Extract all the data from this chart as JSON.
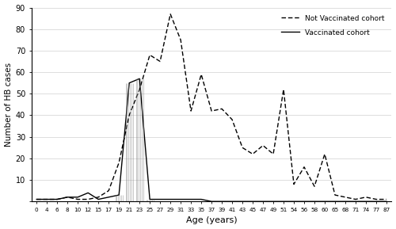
{
  "x_labels": [
    "0",
    "4",
    "6",
    "8",
    "10",
    "12",
    "15",
    "17",
    "19",
    "21",
    "23",
    "25",
    "27",
    "29",
    "31",
    "33",
    "35",
    "37",
    "39",
    "41",
    "43",
    "45",
    "47",
    "49",
    "51",
    "54",
    "56",
    "58",
    "60",
    "65",
    "68",
    "71",
    "74",
    "77",
    "87"
  ],
  "not_vaccinated": [
    1,
    1,
    1,
    2,
    1,
    1,
    2,
    5,
    18,
    40,
    52,
    68,
    65,
    87,
    75,
    42,
    59,
    42,
    43,
    38,
    25,
    22,
    26,
    22,
    52,
    8,
    16,
    7,
    22,
    3,
    2,
    1,
    2,
    1,
    1
  ],
  "vaccinated": [
    1,
    1,
    1,
    2,
    2,
    4,
    1,
    2,
    3,
    55,
    57,
    1,
    1,
    1,
    1,
    1,
    1,
    0,
    0,
    0,
    0,
    0,
    0,
    0,
    0,
    0,
    0,
    0,
    0,
    0,
    0,
    0,
    0,
    0,
    0
  ],
  "vline_x_indices": [
    8,
    9,
    10,
    11
  ],
  "ylim": [
    0,
    90
  ],
  "yticks": [
    0,
    10,
    20,
    30,
    40,
    50,
    60,
    70,
    80,
    90
  ],
  "ylabel": "Number of HB cases",
  "xlabel": "Age (years)",
  "legend_not_vaccinated": "Not Vaccinated cohort",
  "legend_vaccinated": "Vaccinated cohort",
  "bg_color": "#ffffff",
  "line_color": "#000000",
  "grid_color": "#d0d0d0"
}
